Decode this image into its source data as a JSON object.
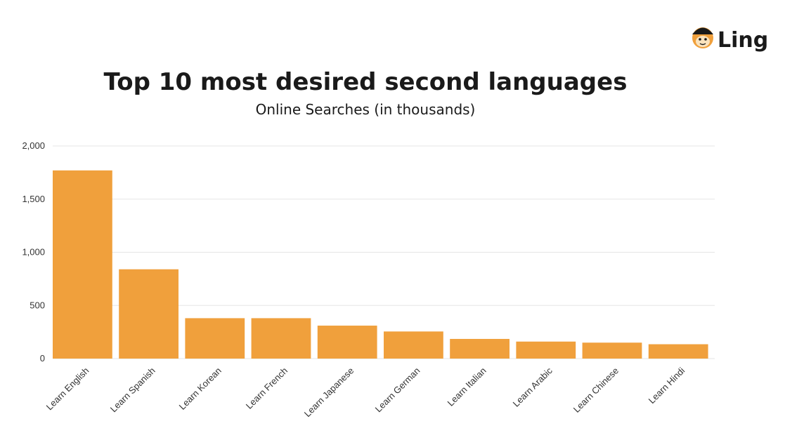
{
  "brand": {
    "name": "Ling",
    "logo_icon": "monkey-face-icon"
  },
  "colors": {
    "bar": "#f0a03c",
    "grid": "#e6e6e6",
    "text": "#1a1a1a"
  },
  "chart_data": {
    "type": "bar",
    "title": "Top 10 most desired second languages",
    "subtitle": "Online Searches (in thousands)",
    "xlabel": "",
    "ylabel": "",
    "categories": [
      "Learn English",
      "Learn Spanish",
      "Learn Korean",
      "Learn French",
      "Learn Japanese",
      "Learn German",
      "Learn Italian",
      "Learn Arabic",
      "Learn  Chinese",
      "Learn Hindi"
    ],
    "values": [
      1770,
      840,
      380,
      380,
      310,
      255,
      185,
      160,
      150,
      135
    ],
    "ylim": [
      0,
      2000
    ],
    "yticks": [
      0,
      500,
      1000,
      1500,
      2000
    ],
    "ytick_labels": [
      "0",
      "500",
      "1,000",
      "1,500",
      "2,000"
    ],
    "grid": true,
    "legend": "none"
  }
}
